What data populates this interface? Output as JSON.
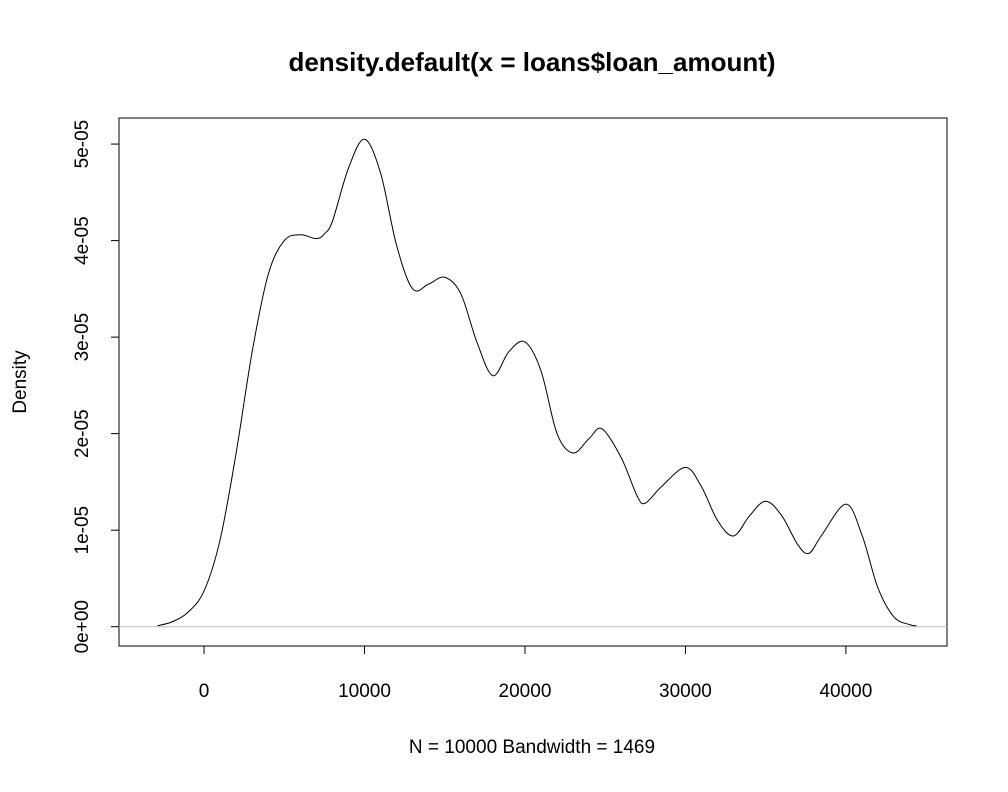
{
  "chart_data": {
    "type": "line",
    "title": "density.default(x = loans$loan_amount)",
    "xlabel": "N = 10000   Bandwidth = 1469",
    "ylabel": "Density",
    "xlim": [
      -5300,
      46300
    ],
    "ylim": [
      -2e-06,
      5.27e-05
    ],
    "x_ticks": [
      0,
      10000,
      20000,
      30000,
      40000
    ],
    "x_tick_labels": [
      "0",
      "10000",
      "20000",
      "30000",
      "40000"
    ],
    "y_ticks": [
      0,
      1e-05,
      2e-05,
      3e-05,
      4e-05,
      5e-05
    ],
    "y_tick_labels": [
      "0e+00",
      "1e-05",
      "2e-05",
      "3e-05",
      "4e-05",
      "5e-05"
    ],
    "baseline_color": "#bebebe",
    "line_color": "#000000",
    "grid": false,
    "series": [
      {
        "x": [
          -2900,
          -2000,
          -1000,
          0,
          1000,
          2000,
          3000,
          4000,
          5000,
          6000,
          7000,
          7500,
          8000,
          9000,
          10000,
          11000,
          12000,
          13000,
          14000,
          15000,
          16000,
          17000,
          18000,
          19000,
          20000,
          21000,
          22000,
          23000,
          24000,
          24800,
          26000,
          27000,
          27500,
          28500,
          30000,
          31000,
          32000,
          33000,
          34000,
          35000,
          36000,
          37000,
          37700,
          38500,
          40000,
          41000,
          42000,
          43000,
          44000,
          44400
        ],
        "y": [
          1e-07,
          5e-07,
          1.5e-06,
          3.7e-06,
          9e-06,
          1.8e-05,
          2.85e-05,
          3.65e-05,
          4e-05,
          4.06e-05,
          4.02e-05,
          4.07e-05,
          4.2e-05,
          4.75e-05,
          5.05e-05,
          4.7e-05,
          3.95e-05,
          3.5e-05,
          3.55e-05,
          3.62e-05,
          3.45e-05,
          2.95e-05,
          2.6e-05,
          2.85e-05,
          2.95e-05,
          2.65e-05,
          2e-05,
          1.8e-05,
          1.95e-05,
          2.05e-05,
          1.75e-05,
          1.35e-05,
          1.28e-05,
          1.45e-05,
          1.65e-05,
          1.45e-05,
          1.1e-05,
          9.4e-06,
          1.15e-05,
          1.3e-05,
          1.15e-05,
          8.5e-06,
          7.6e-06,
          9.5e-06,
          1.27e-05,
          9.5e-06,
          4e-06,
          1e-06,
          2e-07,
          1e-07
        ]
      }
    ]
  }
}
